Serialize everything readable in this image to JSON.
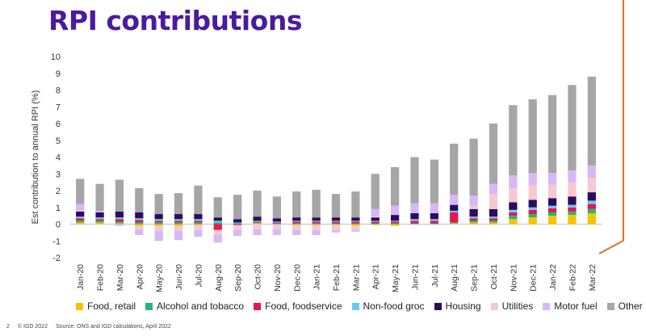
{
  "slide": {
    "title": "RPI contributions",
    "title_color": "#4b1a9e",
    "accent_line_color": "#e8692a"
  },
  "footer": {
    "page_number": "2",
    "copyright": "© IGD 2022",
    "source": "Source: ONS and IGD calculations, April 2022"
  },
  "chart_data": {
    "type": "bar",
    "stacked": true,
    "ylabel": "Est contribution to annual RPI (%)",
    "ylim": [
      -2,
      10
    ],
    "yticks": [
      -2,
      -1,
      0,
      1,
      2,
      3,
      4,
      5,
      6,
      7,
      8,
      9,
      10
    ],
    "categories": [
      "Jan-20",
      "Feb-20",
      "Mar-20",
      "Apr-20",
      "May-20",
      "Jun-20",
      "Jul-20",
      "Aug-20",
      "Sep-20",
      "Oct-20",
      "Nov-20",
      "Dec-20",
      "Jan-21",
      "Feb-21",
      "Mar-21",
      "Apr-21",
      "May-21",
      "Jun-21",
      "Jul-21",
      "Aug-21",
      "Sep-21",
      "Oct-21",
      "Nov-21",
      "Dec-21",
      "Jan-22",
      "Feb-22",
      "Mar-22"
    ],
    "legend_position": "bottom",
    "series": [
      {
        "name": "Food, retail",
        "color": "#f7c300",
        "values": [
          0.1,
          0.1,
          0.05,
          -0.1,
          -0.1,
          -0.1,
          -0.05,
          0,
          0,
          0.05,
          0,
          -0.05,
          -0.05,
          -0.05,
          -0.1,
          -0.05,
          -0.1,
          0,
          0,
          0.05,
          0.1,
          0.1,
          0.3,
          0.4,
          0.5,
          0.55,
          0.65
        ]
      },
      {
        "name": "Alcohol and tobacco",
        "color": "#1db87a",
        "values": [
          0.1,
          0.1,
          0.1,
          0.1,
          0.1,
          0.1,
          0.1,
          0.1,
          0.05,
          0.05,
          0.05,
          0.05,
          0.05,
          0.05,
          0.05,
          0.05,
          0.05,
          0.05,
          0.05,
          0.05,
          0.1,
          0.1,
          0.2,
          0.2,
          0.2,
          0.2,
          0.25
        ]
      },
      {
        "name": "Food, foodservice",
        "color": "#e4174f",
        "values": [
          0.15,
          0.1,
          0.15,
          0.15,
          0.1,
          0.1,
          0.1,
          -0.35,
          -0.05,
          0.05,
          0.05,
          0.1,
          0.1,
          0.1,
          0.1,
          0.1,
          0.1,
          0.15,
          0.15,
          0.6,
          0.15,
          0.15,
          0.2,
          0.25,
          0.25,
          0.25,
          0.3
        ]
      },
      {
        "name": "Non-food groc",
        "color": "#69c9f0",
        "values": [
          0.1,
          0.1,
          0.1,
          0.1,
          0.1,
          0.1,
          0.1,
          0.1,
          0.05,
          0.05,
          0.05,
          0.05,
          0.05,
          0.05,
          0.05,
          0.05,
          0.05,
          0.1,
          0.1,
          0.1,
          0.1,
          0.1,
          0.15,
          0.15,
          0.15,
          0.15,
          0.2
        ]
      },
      {
        "name": "Housing",
        "color": "#2b0c5e",
        "values": [
          0.3,
          0.3,
          0.35,
          0.35,
          0.3,
          0.3,
          0.3,
          0.2,
          0.2,
          0.25,
          0.2,
          0.2,
          0.2,
          0.2,
          0.2,
          0.2,
          0.35,
          0.35,
          0.35,
          0.35,
          0.45,
          0.45,
          0.45,
          0.45,
          0.45,
          0.5,
          0.5
        ]
      },
      {
        "name": "Utilities",
        "color": "#f7c8cf",
        "values": [
          0.05,
          0,
          0,
          -0.2,
          -0.3,
          -0.3,
          -0.3,
          -0.3,
          -0.3,
          -0.3,
          -0.3,
          -0.3,
          -0.3,
          -0.3,
          -0.25,
          0.05,
          0,
          0,
          0,
          0,
          0.2,
          0.9,
          0.85,
          0.85,
          0.8,
          0.85,
          0.85
        ]
      },
      {
        "name": "Motor fuel",
        "color": "#d7b8f7",
        "values": [
          0.4,
          0.1,
          -0.1,
          -0.35,
          -0.6,
          -0.55,
          -0.4,
          -0.45,
          -0.35,
          -0.35,
          -0.35,
          -0.3,
          -0.3,
          -0.15,
          -0.1,
          0.45,
          0.55,
          0.6,
          0.6,
          0.6,
          0.6,
          0.6,
          0.75,
          0.75,
          0.7,
          0.7,
          0.75
        ]
      },
      {
        "name": "Other",
        "color": "#a6a6a6",
        "values": [
          1.5,
          1.6,
          1.9,
          1.45,
          1.2,
          1.25,
          1.7,
          1.2,
          1.45,
          1.55,
          1.3,
          1.55,
          1.65,
          1.4,
          1.55,
          2.1,
          2.3,
          2.75,
          2.6,
          3.05,
          3.4,
          3.6,
          4.2,
          4.4,
          4.65,
          5.1,
          5.3
        ]
      }
    ]
  }
}
